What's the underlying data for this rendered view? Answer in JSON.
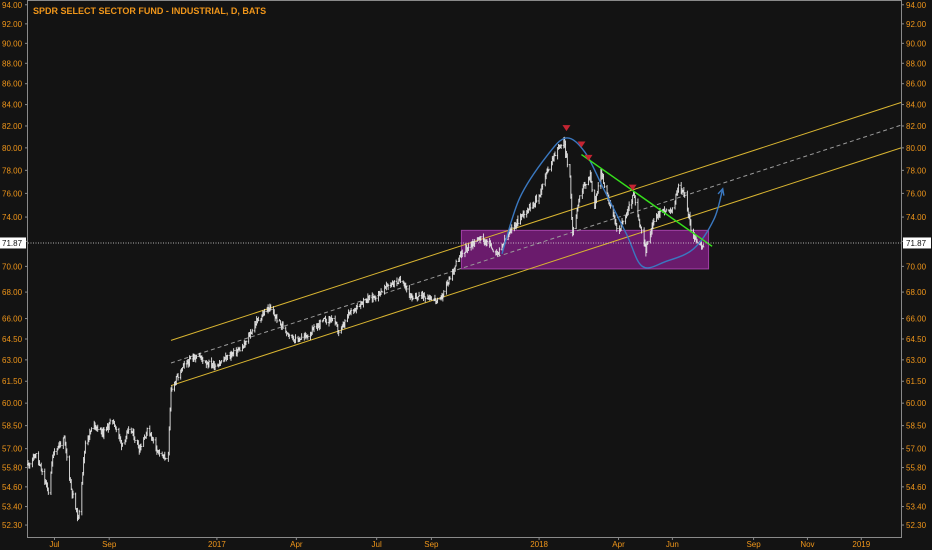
{
  "colors": {
    "background": "#131313",
    "frame": "#8a8a8a",
    "axis_text": "#f0961a",
    "price_bars": "#e4e4e4",
    "channel": "#d9b531",
    "channel_mid": "#9a9a9a",
    "zone": "#7a1d7d",
    "zone_edge": "#a040a5",
    "trend": "#36e01c",
    "cup": "#3a78c0",
    "marker": "#c42432",
    "last_price_line": "#e8e8e8"
  },
  "chart_data": {
    "type": "candlestick",
    "title": "SPDR SELECT SECTOR FUND - INDUSTRIAL, D, BATS",
    "x_range": [
      "2016-06-01",
      "2019-02-15"
    ],
    "y_range": [
      51.6,
      94.4
    ],
    "y_scale": "log",
    "y_ticks": [
      "52.30",
      "53.40",
      "54.60",
      "55.80",
      "57.00",
      "58.50",
      "60.00",
      "61.50",
      "63.00",
      "64.50",
      "66.00",
      "68.00",
      "70.00",
      "72.00",
      "74.00",
      "76.00",
      "78.00",
      "80.00",
      "82.00",
      "84.00",
      "86.00",
      "88.00",
      "90.00",
      "92.00",
      "94.00"
    ],
    "x_ticks": [
      {
        "label": "Jul",
        "date": "2016-07-01"
      },
      {
        "label": "Sep",
        "date": "2016-09-01"
      },
      {
        "label": "2017",
        "date": "2017-01-01"
      },
      {
        "label": "Apr",
        "date": "2017-04-01"
      },
      {
        "label": "Jul",
        "date": "2017-07-01"
      },
      {
        "label": "Sep",
        "date": "2017-09-01"
      },
      {
        "label": "2018",
        "date": "2018-01-01"
      },
      {
        "label": "Apr",
        "date": "2018-04-01"
      },
      {
        "label": "Jun",
        "date": "2018-06-01"
      },
      {
        "label": "Sep",
        "date": "2018-09-01"
      },
      {
        "label": "Nov",
        "date": "2018-11-01"
      },
      {
        "label": "2019",
        "date": "2019-01-01"
      }
    ],
    "last_price": {
      "value": 71.87,
      "label": "71.87"
    },
    "grid": false,
    "price_anchors": [
      [
        "2016-06-01",
        56.0
      ],
      [
        "2016-06-10",
        56.6
      ],
      [
        "2016-06-24",
        54.3
      ],
      [
        "2016-06-30",
        56.8
      ],
      [
        "2016-07-12",
        57.6
      ],
      [
        "2016-07-20",
        54.5
      ],
      [
        "2016-07-28",
        52.6
      ],
      [
        "2016-08-05",
        57.4
      ],
      [
        "2016-08-15",
        58.6
      ],
      [
        "2016-08-25",
        58.0
      ],
      [
        "2016-09-05",
        58.9
      ],
      [
        "2016-09-15",
        57.3
      ],
      [
        "2016-09-25",
        58.3
      ],
      [
        "2016-10-05",
        57.0
      ],
      [
        "2016-10-15",
        58.3
      ],
      [
        "2016-10-25",
        57.0
      ],
      [
        "2016-11-01",
        56.4
      ],
      [
        "2016-11-07",
        56.6
      ],
      [
        "2016-11-10",
        61.0
      ],
      [
        "2016-11-25",
        62.6
      ],
      [
        "2016-12-10",
        63.4
      ],
      [
        "2016-12-20",
        62.8
      ],
      [
        "2016-12-31",
        62.6
      ],
      [
        "2017-01-15",
        63.3
      ],
      [
        "2017-01-31",
        63.9
      ],
      [
        "2017-02-15",
        65.8
      ],
      [
        "2017-03-01",
        66.8
      ],
      [
        "2017-03-15",
        65.5
      ],
      [
        "2017-03-31",
        64.4
      ],
      [
        "2017-04-15",
        64.8
      ],
      [
        "2017-04-30",
        65.8
      ],
      [
        "2017-05-12",
        66.0
      ],
      [
        "2017-05-20",
        64.9
      ],
      [
        "2017-05-31",
        66.4
      ],
      [
        "2017-06-15",
        67.3
      ],
      [
        "2017-06-30",
        67.7
      ],
      [
        "2017-07-15",
        68.6
      ],
      [
        "2017-07-31",
        68.9
      ],
      [
        "2017-08-10",
        67.4
      ],
      [
        "2017-08-20",
        67.8
      ],
      [
        "2017-08-31",
        67.6
      ],
      [
        "2017-09-10",
        67.2
      ],
      [
        "2017-09-20",
        68.8
      ],
      [
        "2017-09-30",
        70.4
      ],
      [
        "2017-10-10",
        71.4
      ],
      [
        "2017-10-25",
        72.3
      ],
      [
        "2017-11-05",
        71.8
      ],
      [
        "2017-11-15",
        70.9
      ],
      [
        "2017-11-25",
        72.3
      ],
      [
        "2017-12-05",
        73.4
      ],
      [
        "2017-12-15",
        74.4
      ],
      [
        "2017-12-31",
        75.6
      ],
      [
        "2018-01-10",
        77.9
      ],
      [
        "2018-01-20",
        79.7
      ],
      [
        "2018-01-29",
        80.6
      ],
      [
        "2018-02-05",
        77.2
      ],
      [
        "2018-02-08",
        72.6
      ],
      [
        "2018-02-15",
        75.6
      ],
      [
        "2018-02-28",
        77.6
      ],
      [
        "2018-03-05",
        74.9
      ],
      [
        "2018-03-12",
        77.9
      ],
      [
        "2018-03-20",
        75.6
      ],
      [
        "2018-03-31",
        72.8
      ],
      [
        "2018-04-10",
        74.2
      ],
      [
        "2018-04-18",
        75.9
      ],
      [
        "2018-04-25",
        73.3
      ],
      [
        "2018-05-02",
        71.3
      ],
      [
        "2018-05-10",
        73.6
      ],
      [
        "2018-05-20",
        74.6
      ],
      [
        "2018-05-31",
        74.4
      ],
      [
        "2018-06-08",
        76.6
      ],
      [
        "2018-06-15",
        75.9
      ],
      [
        "2018-06-22",
        73.1
      ],
      [
        "2018-06-29",
        71.9
      ],
      [
        "2018-07-05",
        71.5
      ],
      [
        "2018-07-09",
        71.87
      ]
    ]
  },
  "annotations": {
    "channel": {
      "start": "2016-11-10",
      "end": "2019-02-15",
      "lower_start": 61.2,
      "lower_end": 80.0,
      "upper_start": 64.4,
      "upper_end": 84.2
    },
    "support_zone": {
      "start": "2017-10-05",
      "end": "2018-07-12",
      "low": 69.8,
      "high": 72.9
    },
    "trendline": {
      "start": "2018-02-18",
      "end": "2018-07-16",
      "start_price": 79.4,
      "end_price": 71.6
    },
    "resistance_markers": [
      {
        "date": "2018-02-01",
        "price": 81.8
      },
      {
        "date": "2018-02-18",
        "price": 80.3
      },
      {
        "date": "2018-02-26",
        "price": 79.1
      },
      {
        "date": "2018-04-17",
        "price": 76.5
      }
    ],
    "cup_path": [
      {
        "date": "2017-11-20",
        "price": 71.0
      },
      {
        "date": "2017-12-10",
        "price": 75.6
      },
      {
        "date": "2018-01-10",
        "price": 79.3
      },
      {
        "date": "2018-02-01",
        "price": 80.9
      },
      {
        "date": "2018-02-22",
        "price": 79.6
      },
      {
        "date": "2018-03-15",
        "price": 76.4
      },
      {
        "date": "2018-04-10",
        "price": 72.6
      },
      {
        "date": "2018-04-28",
        "price": 70.0
      },
      {
        "date": "2018-05-25",
        "price": 70.4
      },
      {
        "date": "2018-06-25",
        "price": 71.4
      },
      {
        "date": "2018-07-18",
        "price": 73.8
      },
      {
        "date": "2018-07-28",
        "price": 76.4
      }
    ]
  }
}
